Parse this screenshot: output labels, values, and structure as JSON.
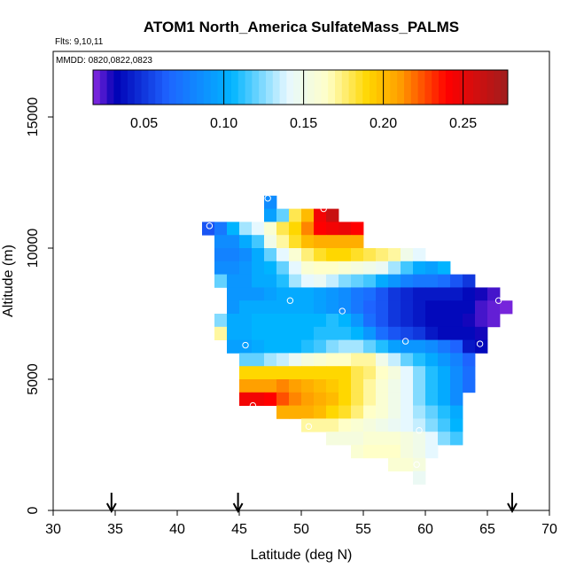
{
  "chart_data": {
    "type": "heatmap",
    "title": "ATOM1 North_America SulfateMass_PALMS",
    "flights_label": "Flts: 9,10,11",
    "dates_label": "MMDD: 0820,0822,0823",
    "xlabel": "Latitude (deg N)",
    "ylabel": "Altitude (m)",
    "xlim": [
      30,
      70
    ],
    "ylim": [
      0,
      17500
    ],
    "x_ticks": [
      30,
      35,
      40,
      45,
      50,
      55,
      60,
      65,
      70
    ],
    "y_ticks": [
      0,
      5000,
      10000,
      15000
    ],
    "cell_width_deg": 1,
    "cell_height_m": 500,
    "colorbar": {
      "range": [
        0.018,
        0.278
      ],
      "ticks": [
        0.05,
        0.1,
        0.15,
        0.2,
        0.25
      ],
      "tick_labels": [
        "0.05",
        "0.10",
        "0.15",
        "0.20",
        "0.25"
      ],
      "major_lines": [
        0.1,
        0.15,
        0.2,
        0.25
      ],
      "stops": [
        {
          "v": 0.018,
          "color": "#8a2be2"
        },
        {
          "v": 0.032,
          "color": "#0000b4"
        },
        {
          "v": 0.065,
          "color": "#1e64ff"
        },
        {
          "v": 0.105,
          "color": "#00b4ff"
        },
        {
          "v": 0.14,
          "color": "#e6f8ff"
        },
        {
          "v": 0.165,
          "color": "#ffffc8"
        },
        {
          "v": 0.19,
          "color": "#ffd700"
        },
        {
          "v": 0.21,
          "color": "#ffa000"
        },
        {
          "v": 0.24,
          "color": "#ff0000"
        },
        {
          "v": 0.278,
          "color": "#a01e1e"
        }
      ]
    },
    "arrow_latitudes": [
      34.7,
      44.9,
      67.0
    ],
    "cells": [
      {
        "y": 11750,
        "x": [
          47
        ],
        "values": [
          0.085
        ]
      },
      {
        "y": 11250,
        "x": [
          47,
          48,
          49,
          50,
          51,
          52
        ],
        "values": [
          0.095,
          0.12,
          0.18,
          0.2,
          0.245,
          0.262
        ]
      },
      {
        "y": 10750,
        "x": [
          42,
          43,
          44,
          45,
          46,
          47,
          48,
          49,
          50,
          51,
          52,
          53,
          54
        ],
        "values": [
          0.06,
          0.075,
          0.105,
          0.13,
          0.14,
          0.16,
          0.18,
          0.19,
          0.215,
          0.24,
          0.245,
          0.248,
          0.24
        ]
      },
      {
        "y": 10250,
        "x": [
          43,
          44,
          45,
          46,
          47,
          48,
          49,
          50,
          51,
          52,
          53,
          54
        ],
        "values": [
          0.085,
          0.085,
          0.1,
          0.115,
          0.15,
          0.17,
          0.185,
          0.2,
          0.205,
          0.205,
          0.205,
          0.205
        ]
      },
      {
        "y": 9750,
        "x": [
          43,
          44,
          45,
          46,
          47,
          48,
          49,
          50,
          51,
          52,
          53,
          54,
          55,
          56,
          57,
          58,
          59
        ],
        "values": [
          0.08,
          0.08,
          0.085,
          0.1,
          0.12,
          0.14,
          0.16,
          0.175,
          0.185,
          0.19,
          0.19,
          0.185,
          0.18,
          0.175,
          0.17,
          0.15,
          0.14
        ]
      },
      {
        "y": 9250,
        "x": [
          43,
          44,
          45,
          46,
          47,
          48,
          49,
          50,
          51,
          52,
          53,
          54,
          55,
          56,
          57,
          58,
          59,
          60,
          61
        ],
        "values": [
          0.085,
          0.085,
          0.09,
          0.1,
          0.105,
          0.12,
          0.14,
          0.16,
          0.165,
          0.165,
          0.16,
          0.155,
          0.15,
          0.145,
          0.13,
          0.115,
          0.1,
          0.095,
          0.105
        ]
      },
      {
        "y": 8750,
        "x": [
          43,
          44,
          45,
          46,
          47,
          48,
          49,
          50,
          51,
          52,
          53,
          54,
          55,
          56,
          57,
          58,
          59,
          60,
          61,
          62,
          63
        ],
        "values": [
          0.12,
          0.09,
          0.09,
          0.1,
          0.1,
          0.11,
          0.13,
          0.14,
          0.145,
          0.135,
          0.125,
          0.12,
          0.115,
          0.1,
          0.09,
          0.08,
          0.075,
          0.075,
          0.07,
          0.06,
          0.05
        ]
      },
      {
        "y": 8250,
        "x": [
          44,
          45,
          46,
          47,
          48,
          49,
          50,
          51,
          52,
          53,
          54,
          55,
          56,
          57,
          58,
          59,
          60,
          61,
          62,
          63,
          64,
          65
        ],
        "values": [
          0.09,
          0.09,
          0.09,
          0.095,
          0.1,
          0.1,
          0.1,
          0.095,
          0.09,
          0.085,
          0.075,
          0.07,
          0.06,
          0.05,
          0.045,
          0.04,
          0.04,
          0.04,
          0.04,
          0.035,
          0.03,
          0.025
        ]
      },
      {
        "y": 7750,
        "x": [
          44,
          45,
          46,
          47,
          48,
          49,
          50,
          51,
          52,
          53,
          54,
          55,
          56,
          57,
          58,
          59,
          60,
          61,
          62,
          63,
          64,
          65,
          66
        ],
        "values": [
          0.09,
          0.1,
          0.1,
          0.1,
          0.1,
          0.1,
          0.1,
          0.095,
          0.09,
          0.085,
          0.075,
          0.065,
          0.06,
          0.05,
          0.045,
          0.04,
          0.035,
          0.035,
          0.035,
          0.035,
          0.025,
          0.022,
          0.02
        ]
      },
      {
        "y": 7250,
        "x": [
          43,
          44,
          45,
          46,
          47,
          48,
          49,
          50,
          51,
          52,
          53,
          54,
          55,
          56,
          57,
          58,
          59,
          60,
          61,
          62,
          63,
          64,
          65
        ],
        "values": [
          0.125,
          0.1,
          0.1,
          0.105,
          0.105,
          0.105,
          0.105,
          0.105,
          0.105,
          0.11,
          0.105,
          0.09,
          0.07,
          0.06,
          0.05,
          0.045,
          0.04,
          0.035,
          0.035,
          0.035,
          0.03,
          0.025,
          0.022
        ]
      },
      {
        "y": 6750,
        "x": [
          43,
          44,
          45,
          46,
          47,
          48,
          49,
          50,
          51,
          52,
          53,
          54,
          55,
          56,
          57,
          58,
          59,
          60,
          61,
          62,
          63,
          64
        ],
        "values": [
          0.17,
          0.1,
          0.1,
          0.105,
          0.105,
          0.105,
          0.105,
          0.105,
          0.11,
          0.11,
          0.11,
          0.105,
          0.09,
          0.07,
          0.06,
          0.055,
          0.05,
          0.04,
          0.035,
          0.035,
          0.035,
          0.03
        ]
      },
      {
        "y": 6250,
        "x": [
          44,
          45,
          46,
          47,
          48,
          49,
          50,
          51,
          52,
          53,
          54,
          55,
          56,
          57,
          58,
          59,
          60,
          61,
          62,
          63,
          64
        ],
        "values": [
          0.095,
          0.095,
          0.1,
          0.105,
          0.105,
          0.105,
          0.11,
          0.115,
          0.125,
          0.13,
          0.13,
          0.12,
          0.11,
          0.095,
          0.09,
          0.09,
          0.085,
          0.075,
          0.065,
          0.04,
          0.035
        ]
      },
      {
        "y": 5750,
        "x": [
          45,
          46,
          47,
          48,
          49,
          50,
          51,
          52,
          53,
          54,
          55,
          56,
          57,
          58,
          59,
          60,
          61,
          62,
          63
        ],
        "values": [
          0.12,
          0.12,
          0.13,
          0.135,
          0.145,
          0.155,
          0.16,
          0.165,
          0.165,
          0.17,
          0.17,
          0.15,
          0.135,
          0.12,
          0.11,
          0.1,
          0.09,
          0.08,
          0.065
        ]
      },
      {
        "y": 5250,
        "x": [
          45,
          46,
          47,
          48,
          49,
          50,
          51,
          52,
          53,
          54,
          55,
          56,
          57,
          58,
          59,
          60,
          61,
          62,
          63
        ],
        "values": [
          0.19,
          0.19,
          0.19,
          0.19,
          0.19,
          0.19,
          0.19,
          0.19,
          0.19,
          0.18,
          0.175,
          0.165,
          0.155,
          0.14,
          0.125,
          0.11,
          0.1,
          0.085,
          0.07
        ]
      },
      {
        "y": 4750,
        "x": [
          45,
          46,
          47,
          48,
          49,
          50,
          51,
          52,
          53,
          54,
          55,
          56,
          57,
          58,
          59,
          60,
          61,
          62,
          63
        ],
        "values": [
          0.21,
          0.21,
          0.21,
          0.215,
          0.21,
          0.205,
          0.2,
          0.195,
          0.19,
          0.18,
          0.17,
          0.16,
          0.15,
          0.14,
          0.125,
          0.11,
          0.1,
          0.085,
          0.07
        ]
      },
      {
        "y": 4250,
        "x": [
          45,
          46,
          47,
          48,
          49,
          50,
          51,
          52,
          53,
          54,
          55,
          56,
          57,
          58,
          59,
          60,
          61,
          62
        ],
        "values": [
          0.245,
          0.245,
          0.24,
          0.225,
          0.215,
          0.21,
          0.205,
          0.2,
          0.19,
          0.18,
          0.17,
          0.16,
          0.15,
          0.14,
          0.125,
          0.11,
          0.1,
          0.085
        ]
      },
      {
        "y": 3750,
        "x": [
          48,
          49,
          50,
          51,
          52,
          53,
          54,
          55,
          56,
          57,
          58,
          59,
          60,
          61,
          62
        ],
        "values": [
          0.205,
          0.205,
          0.205,
          0.2,
          0.19,
          0.185,
          0.175,
          0.165,
          0.16,
          0.15,
          0.14,
          0.13,
          0.12,
          0.11,
          0.1
        ]
      },
      {
        "y": 3250,
        "x": [
          50,
          51,
          52,
          53,
          54,
          55,
          56,
          57,
          58,
          59,
          60,
          61,
          62
        ],
        "values": [
          0.17,
          0.17,
          0.17,
          0.165,
          0.16,
          0.155,
          0.15,
          0.145,
          0.14,
          0.135,
          0.125,
          0.115,
          0.105
        ]
      },
      {
        "y": 2750,
        "x": [
          52,
          53,
          54,
          55,
          56,
          57,
          58,
          59,
          60,
          61,
          62
        ],
        "values": [
          0.155,
          0.155,
          0.155,
          0.16,
          0.16,
          0.16,
          0.155,
          0.15,
          0.14,
          0.125,
          0.115
        ]
      },
      {
        "y": 2250,
        "x": [
          54,
          55,
          56,
          57,
          58,
          59,
          60
        ],
        "values": [
          0.16,
          0.165,
          0.165,
          0.165,
          0.155,
          0.15,
          0.14
        ]
      },
      {
        "y": 1750,
        "x": [
          57,
          58,
          59
        ],
        "values": [
          0.16,
          0.16,
          0.155
        ]
      },
      {
        "y": 1250,
        "x": [
          59
        ],
        "values": [
          0.145
        ]
      }
    ],
    "markers": [
      {
        "lat": 47.3,
        "alt": 11900
      },
      {
        "lat": 51.8,
        "alt": 11500
      },
      {
        "lat": 42.6,
        "alt": 10850
      },
      {
        "lat": 49.1,
        "alt": 8000
      },
      {
        "lat": 53.3,
        "alt": 7600
      },
      {
        "lat": 65.9,
        "alt": 8000
      },
      {
        "lat": 45.5,
        "alt": 6300
      },
      {
        "lat": 58.4,
        "alt": 6450
      },
      {
        "lat": 64.4,
        "alt": 6350
      },
      {
        "lat": 46.1,
        "alt": 4000
      },
      {
        "lat": 50.6,
        "alt": 3200
      },
      {
        "lat": 59.5,
        "alt": 3050
      },
      {
        "lat": 59.3,
        "alt": 1750
      }
    ]
  }
}
